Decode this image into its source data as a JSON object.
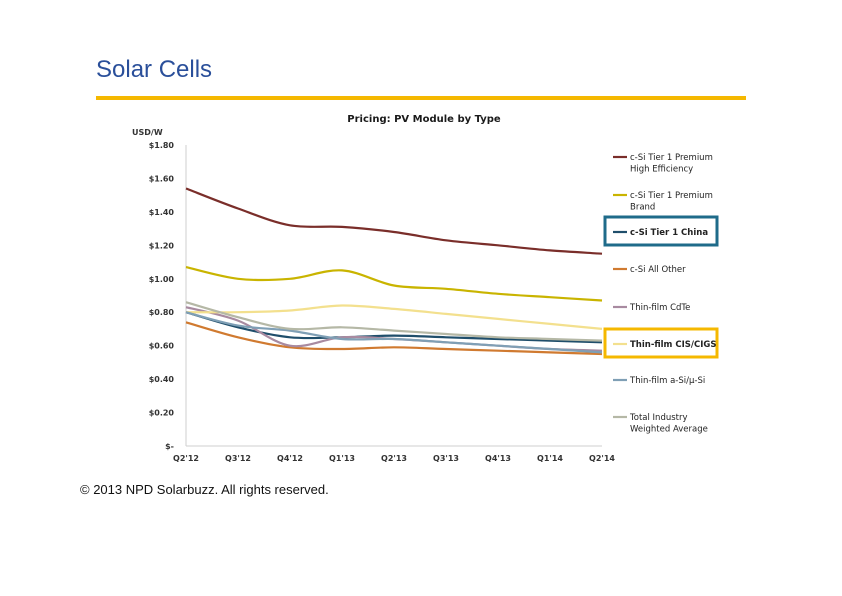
{
  "slide": {
    "title": "Solar Cells",
    "copyright": "© 2013 NPD Solarbuzz. All rights reserved.",
    "accent_color": "#f5b800",
    "title_color": "#2a4f9a"
  },
  "chart_data": {
    "type": "line",
    "title": "Pricing: PV Module by Type",
    "ylabel": "USD/W",
    "xlabel": "",
    "x": [
      "Q2'12",
      "Q3'12",
      "Q4'12",
      "Q1'13",
      "Q2'13",
      "Q3'13",
      "Q4'13",
      "Q1'14",
      "Q2'14"
    ],
    "ylim": [
      0,
      1.8
    ],
    "yticks": [
      {
        "value": 0,
        "label": "$-"
      },
      {
        "value": 0.2,
        "label": "$0.20"
      },
      {
        "value": 0.4,
        "label": "$0.40"
      },
      {
        "value": 0.6,
        "label": "$0.60"
      },
      {
        "value": 0.8,
        "label": "$0.80"
      },
      {
        "value": 1.0,
        "label": "$1.00"
      },
      {
        "value": 1.2,
        "label": "$1.20"
      },
      {
        "value": 1.4,
        "label": "$1.40"
      },
      {
        "value": 1.6,
        "label": "$1.60"
      },
      {
        "value": 1.8,
        "label": "$1.80"
      }
    ],
    "grid": false,
    "legend_position": "right",
    "series": [
      {
        "name": "c-Si Tier 1 Premium High Efficiency",
        "color": "#7a2e2a",
        "highlight": false,
        "values": [
          1.54,
          1.42,
          1.32,
          1.31,
          1.28,
          1.23,
          1.2,
          1.17,
          1.15
        ]
      },
      {
        "name": "c-Si Tier 1 Premium Brand",
        "color": "#c9b400",
        "highlight": false,
        "values": [
          1.07,
          1.0,
          1.0,
          1.05,
          0.96,
          0.94,
          0.91,
          0.89,
          0.87
        ]
      },
      {
        "name": "c-Si Tier 1 China",
        "color": "#1f4e6b",
        "highlight": true,
        "highlight_color": "#1f6b8a",
        "values": [
          0.8,
          0.71,
          0.65,
          0.65,
          0.66,
          0.65,
          0.64,
          0.63,
          0.62
        ]
      },
      {
        "name": "c-Si All Other",
        "color": "#d07a30",
        "highlight": false,
        "values": [
          0.74,
          0.65,
          0.59,
          0.58,
          0.59,
          0.58,
          0.57,
          0.56,
          0.55
        ]
      },
      {
        "name": "Thin-film CdTe",
        "color": "#a88aa0",
        "highlight": false,
        "values": [
          0.83,
          0.75,
          0.6,
          0.65,
          0.64,
          0.62,
          0.6,
          0.58,
          0.57
        ]
      },
      {
        "name": "Thin-film CIS/CIGS",
        "color": "#f3e08e",
        "highlight": true,
        "highlight_color": "#f5b800",
        "values": [
          0.8,
          0.8,
          0.81,
          0.84,
          0.82,
          0.79,
          0.76,
          0.73,
          0.7
        ]
      },
      {
        "name": "Thin-film a-Si/µ-Si",
        "color": "#7f9fb5",
        "highlight": false,
        "values": [
          0.8,
          0.72,
          0.69,
          0.64,
          0.64,
          0.62,
          0.6,
          0.58,
          0.56
        ]
      },
      {
        "name": "Total Industry Weighted Average",
        "color": "#b5b8a6",
        "highlight": false,
        "values": [
          0.86,
          0.77,
          0.7,
          0.71,
          0.69,
          0.67,
          0.65,
          0.64,
          0.63
        ]
      }
    ]
  }
}
